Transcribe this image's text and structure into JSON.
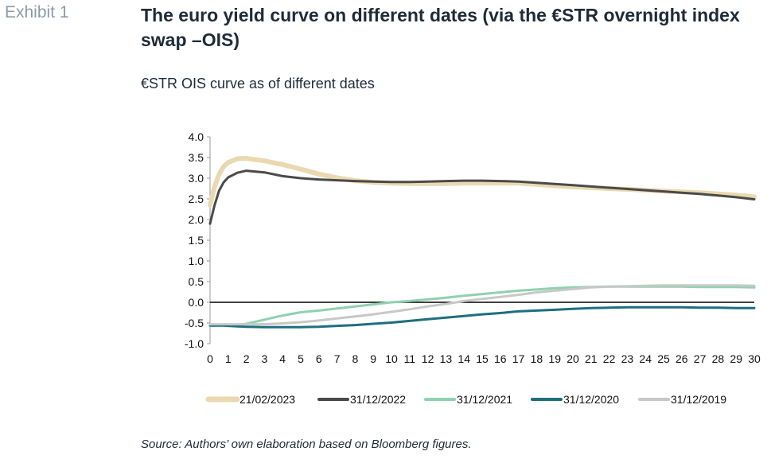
{
  "header": {
    "exhibit_label": "Exhibit 1",
    "title": "The euro yield curve on different dates (via the €STR overnight index swap –OIS)",
    "subtitle": "€STR OIS curve as of different dates"
  },
  "footer": {
    "source": "Source: Authors’ own elaboration based on Bloomberg figures."
  },
  "chart_data": {
    "type": "line",
    "title": "€STR OIS curve as of different dates",
    "xlabel": "",
    "ylabel": "",
    "xlim": [
      0,
      30
    ],
    "ylim": [
      -1.0,
      4.0
    ],
    "x_ticks": [
      0,
      1,
      2,
      3,
      4,
      5,
      6,
      7,
      8,
      9,
      10,
      11,
      12,
      13,
      14,
      15,
      16,
      17,
      18,
      19,
      20,
      21,
      22,
      23,
      24,
      25,
      26,
      27,
      28,
      29,
      30
    ],
    "y_ticks": [
      4.0,
      3.5,
      3.0,
      2.5,
      2.0,
      1.5,
      1.0,
      0.5,
      0.0,
      -0.5,
      -1.0
    ],
    "grid": false,
    "legend_position": "bottom",
    "x": [
      0,
      0.25,
      0.5,
      0.75,
      1,
      1.5,
      2,
      3,
      4,
      5,
      6,
      7,
      8,
      9,
      10,
      11,
      12,
      13,
      14,
      15,
      16,
      17,
      18,
      19,
      20,
      21,
      22,
      23,
      24,
      25,
      26,
      27,
      28,
      29,
      30
    ],
    "series": [
      {
        "name": "21/02/2023",
        "color": "#ead9b0",
        "width": 6,
        "values": [
          2.35,
          2.8,
          3.1,
          3.28,
          3.38,
          3.47,
          3.48,
          3.42,
          3.33,
          3.22,
          3.1,
          3.01,
          2.94,
          2.9,
          2.88,
          2.87,
          2.87,
          2.87,
          2.88,
          2.88,
          2.88,
          2.88,
          2.85,
          2.82,
          2.79,
          2.77,
          2.75,
          2.73,
          2.71,
          2.69,
          2.67,
          2.65,
          2.62,
          2.59,
          2.55
        ]
      },
      {
        "name": "31/12/2022",
        "color": "#4a4a4a",
        "width": 3,
        "values": [
          1.9,
          2.35,
          2.7,
          2.9,
          3.02,
          3.13,
          3.18,
          3.14,
          3.05,
          3.0,
          2.97,
          2.95,
          2.93,
          2.92,
          2.91,
          2.91,
          2.92,
          2.93,
          2.94,
          2.94,
          2.93,
          2.92,
          2.89,
          2.86,
          2.83,
          2.8,
          2.77,
          2.74,
          2.71,
          2.68,
          2.65,
          2.62,
          2.58,
          2.54,
          2.49
        ]
      },
      {
        "name": "31/12/2021",
        "color": "#8fd1b0",
        "width": 3,
        "values": [
          -0.57,
          -0.57,
          -0.57,
          -0.57,
          -0.57,
          -0.56,
          -0.52,
          -0.42,
          -0.32,
          -0.24,
          -0.2,
          -0.15,
          -0.1,
          -0.05,
          0.0,
          0.03,
          0.07,
          0.11,
          0.16,
          0.2,
          0.24,
          0.28,
          0.31,
          0.34,
          0.36,
          0.37,
          0.38,
          0.38,
          0.38,
          0.38,
          0.38,
          0.37,
          0.37,
          0.37,
          0.36
        ]
      },
      {
        "name": "31/12/2020",
        "color": "#1d6f7f",
        "width": 3,
        "values": [
          -0.56,
          -0.56,
          -0.56,
          -0.56,
          -0.57,
          -0.58,
          -0.59,
          -0.6,
          -0.6,
          -0.6,
          -0.59,
          -0.57,
          -0.55,
          -0.52,
          -0.49,
          -0.45,
          -0.41,
          -0.37,
          -0.33,
          -0.29,
          -0.26,
          -0.22,
          -0.2,
          -0.18,
          -0.16,
          -0.14,
          -0.13,
          -0.12,
          -0.12,
          -0.12,
          -0.12,
          -0.13,
          -0.13,
          -0.14,
          -0.14
        ]
      },
      {
        "name": "31/12/2019",
        "color": "#c8c8c8",
        "width": 3,
        "values": [
          -0.53,
          -0.53,
          -0.53,
          -0.53,
          -0.53,
          -0.53,
          -0.53,
          -0.53,
          -0.51,
          -0.48,
          -0.44,
          -0.39,
          -0.34,
          -0.29,
          -0.23,
          -0.17,
          -0.1,
          -0.04,
          0.03,
          0.08,
          0.13,
          0.18,
          0.24,
          0.28,
          0.32,
          0.36,
          0.38,
          0.39,
          0.4,
          0.41,
          0.41,
          0.41,
          0.41,
          0.41,
          0.4
        ]
      }
    ]
  }
}
